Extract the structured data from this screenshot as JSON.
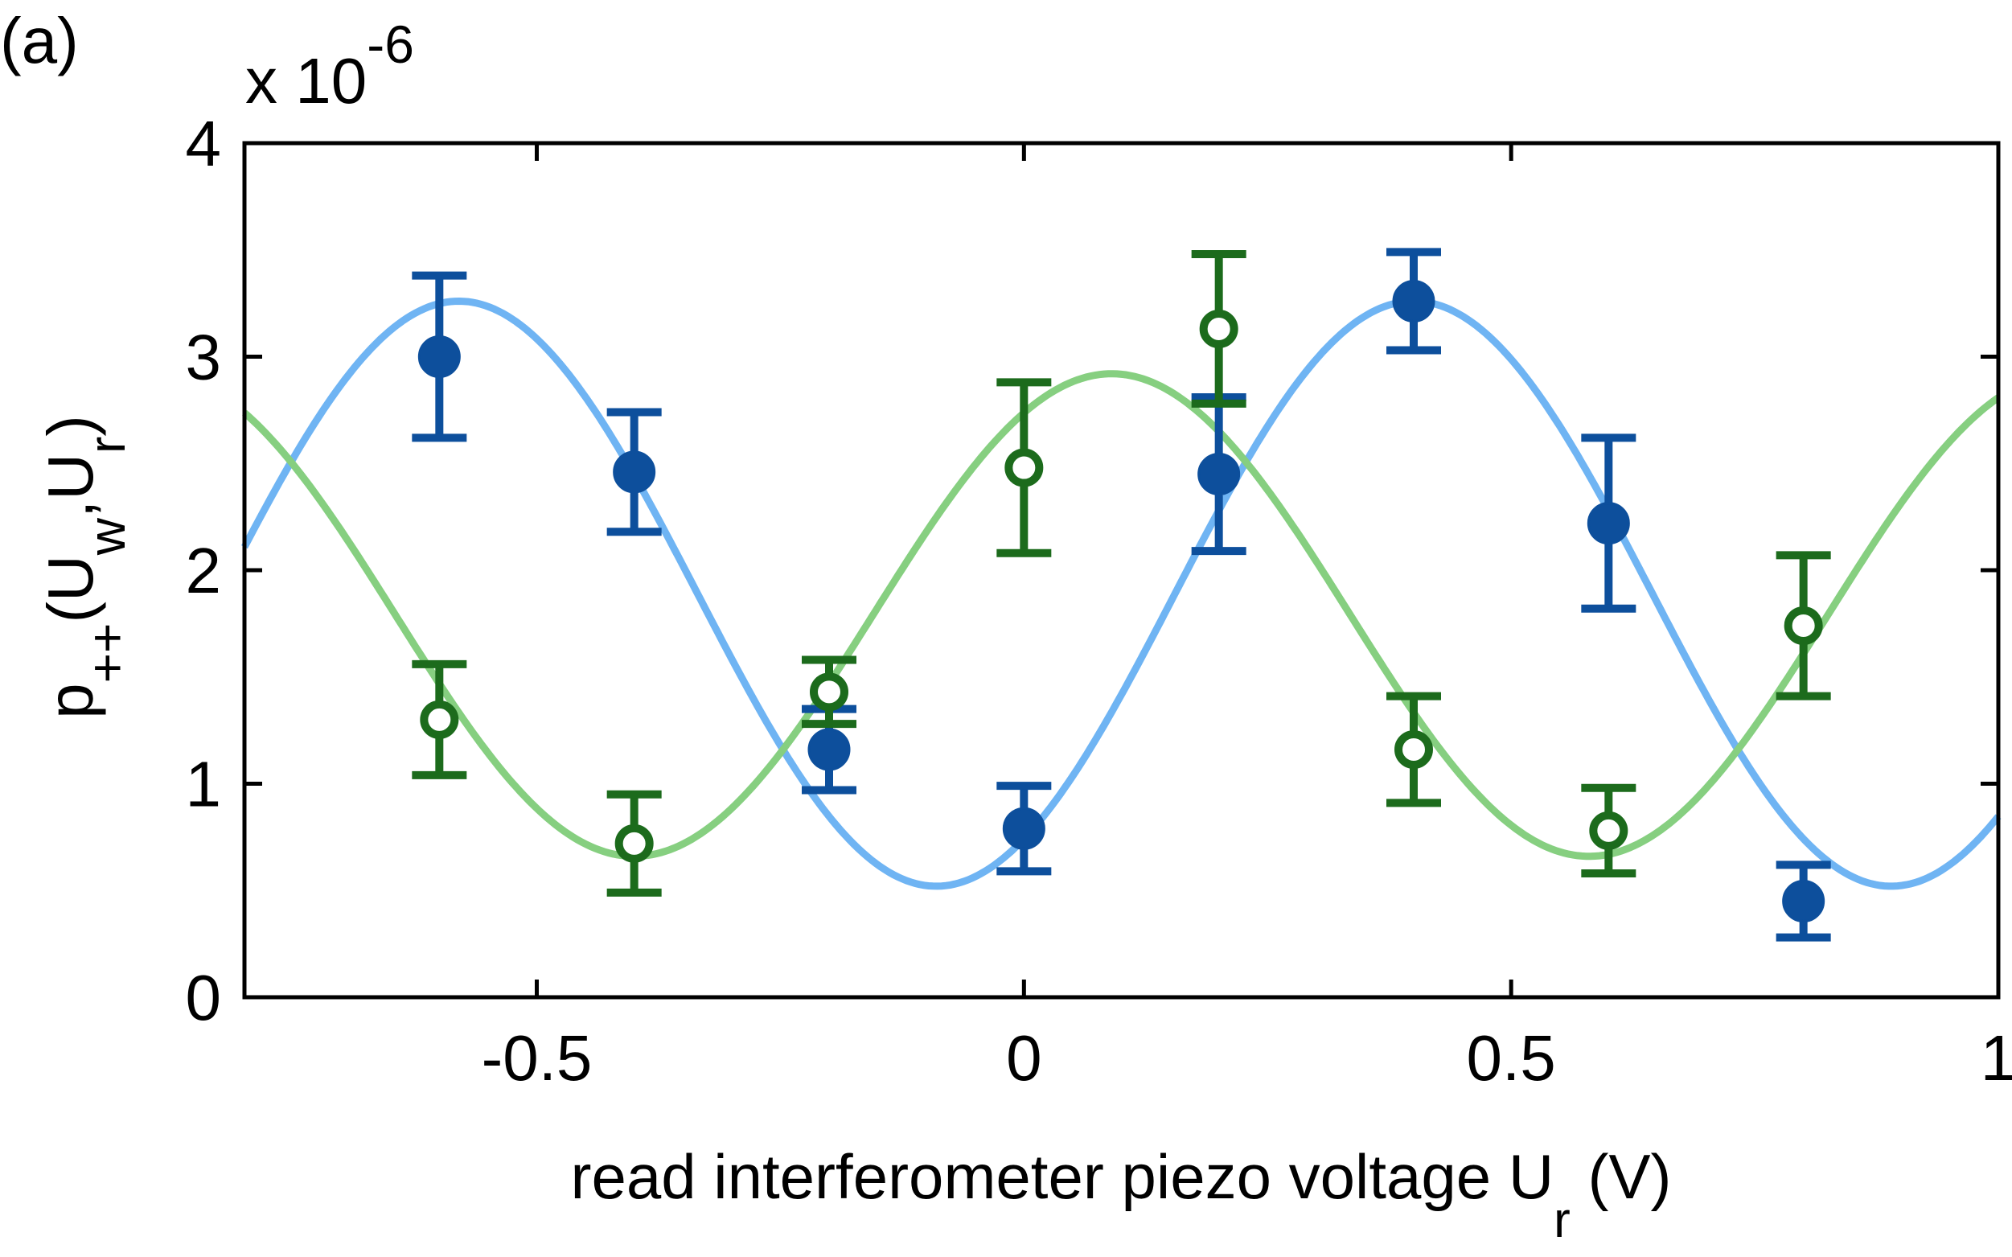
{
  "chart_data": {
    "type": "scatter",
    "panel_label": "(a)",
    "multiplier": {
      "base": "x 10",
      "exponent": "-6"
    },
    "xlabel": {
      "text": "read interferometer piezo voltage U",
      "sub": "r",
      "unit": " (V)"
    },
    "ylabel": {
      "p": "p",
      "p_sub": "++",
      "open": "(U",
      "w_sub": "w",
      "mid": ",U",
      "r_sub": "r",
      "close": ")"
    },
    "xlim": [
      -0.8,
      1.0
    ],
    "ylim": [
      0,
      4
    ],
    "xticks": [
      -0.5,
      0,
      0.5,
      1
    ],
    "xtick_labels": [
      "-0.5",
      "0",
      "0.5",
      "1"
    ],
    "yticks": [
      0,
      1,
      2,
      3,
      4
    ],
    "ytick_labels": [
      "0",
      "1",
      "2",
      "3",
      "4"
    ],
    "grid": false,
    "series": [
      {
        "marker": "filled",
        "color": "#0d4f9c",
        "fit_color": "#6fb4f3",
        "x": [
          -0.6,
          -0.4,
          -0.2,
          0.0,
          0.2,
          0.4,
          0.6,
          0.8
        ],
        "y": [
          3.0,
          2.46,
          1.16,
          0.79,
          2.45,
          3.26,
          2.22,
          0.45
        ],
        "err": [
          0.38,
          0.28,
          0.19,
          0.2,
          0.36,
          0.23,
          0.4,
          0.17
        ]
      },
      {
        "marker": "open",
        "color": "#1c6b1c",
        "fit_color": "#86cf80",
        "x": [
          -0.6,
          -0.4,
          -0.2,
          0.0,
          0.2,
          0.4,
          0.6,
          0.8
        ],
        "y": [
          1.3,
          0.72,
          1.43,
          2.48,
          3.13,
          1.16,
          0.78,
          1.74
        ],
        "err": [
          0.26,
          0.23,
          0.15,
          0.4,
          0.35,
          0.25,
          0.2,
          0.33
        ]
      }
    ],
    "fits": [
      {
        "offset": 1.89,
        "amplitude": 1.37,
        "period": 0.98,
        "phase_x": -0.58
      },
      {
        "offset": 1.79,
        "amplitude": 1.13,
        "period": 0.98,
        "phase_x": 0.09
      }
    ]
  }
}
